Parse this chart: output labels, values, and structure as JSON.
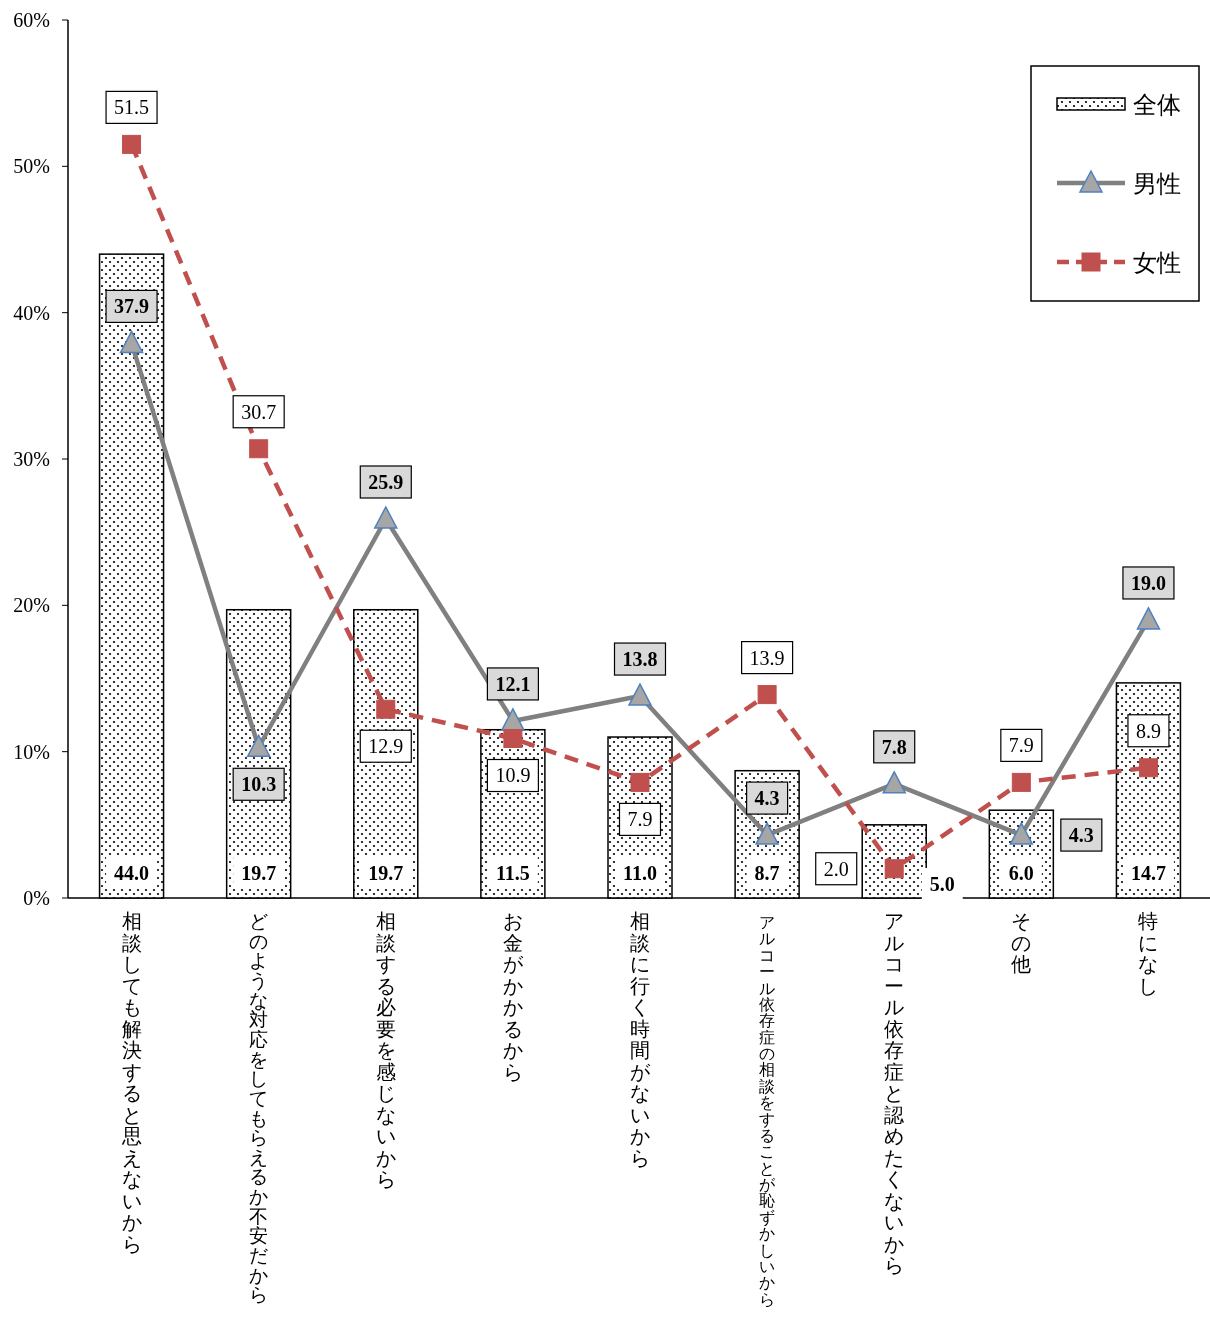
{
  "chart_data": {
    "type": "bar",
    "categories": [
      "相談しても解決すると思えないから",
      "どのような対応をしてもらえるか不安だから",
      "相談する必要を感じないから",
      "お金がかかるから",
      "相談に行く時間がないから",
      "アルコール依存症の相談をすることが恥ずかしいから",
      "アルコール依存症と認めたくないから",
      "その他",
      "特になし"
    ],
    "series": [
      {
        "name": "全体",
        "color": "#000000",
        "values": [
          44.0,
          19.7,
          19.7,
          11.5,
          11.0,
          8.7,
          5.0,
          6.0,
          14.7
        ],
        "value_labels": [
          "44.0",
          "19.7",
          "19.7",
          "11.5",
          "11.0",
          "8.7",
          "5.0",
          "6.0",
          "14.7"
        ]
      },
      {
        "name": "男性",
        "type": "line",
        "color": "#808080",
        "marker": "triangle",
        "line_style": "solid",
        "values": [
          37.9,
          10.3,
          25.9,
          12.1,
          13.8,
          4.3,
          7.8,
          4.3,
          19.0
        ],
        "value_labels": [
          "37.9",
          "10.3",
          "25.9",
          "12.1",
          "13.8",
          "4.3",
          "7.8",
          "4.3",
          "19.0"
        ]
      },
      {
        "name": "女性",
        "type": "line",
        "color": "#c0504d",
        "marker": "square",
        "line_style": "dashed",
        "values": [
          51.5,
          30.7,
          12.9,
          10.9,
          7.9,
          13.9,
          2.0,
          7.9,
          8.9
        ],
        "value_labels": [
          "51.5",
          "30.7",
          "12.9",
          "10.9",
          "7.9",
          "13.9",
          "2.0",
          "7.9",
          "8.9"
        ]
      }
    ],
    "ylim": [
      0,
      60
    ],
    "yticks": [
      {
        "value": 0,
        "label": "0%"
      },
      {
        "value": 10,
        "label": "10%"
      },
      {
        "value": 20,
        "label": "20%"
      },
      {
        "value": 30,
        "label": "30%"
      },
      {
        "value": 40,
        "label": "40%"
      },
      {
        "value": 50,
        "label": "50%"
      },
      {
        "value": 60,
        "label": "60%"
      }
    ],
    "legend": "top right"
  }
}
